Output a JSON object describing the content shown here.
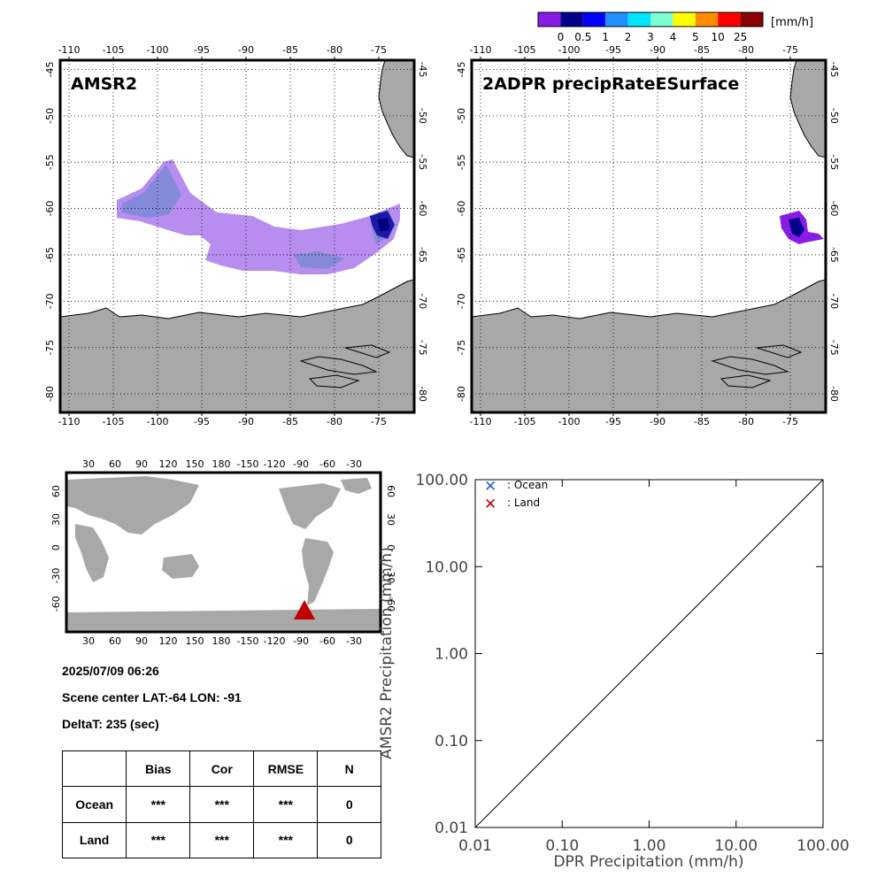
{
  "colorbar": {
    "unit": "[mm/h]",
    "labels": [
      "0",
      "0.5",
      "1",
      "2",
      "3",
      "4",
      "5",
      "10",
      "25"
    ],
    "colors": [
      "#8a1ae6",
      "#00008b",
      "#0000ff",
      "#1e90ff",
      "#00e5ff",
      "#7fffd4",
      "#ffff00",
      "#ff8c00",
      "#ff0000",
      "#8b0000"
    ]
  },
  "panels": {
    "amsr2": {
      "title": "AMSR2"
    },
    "dpr": {
      "title": "2ADPR precipRateESurface"
    }
  },
  "map_axes": {
    "lon_ticks": [
      "-110",
      "-105",
      "-100",
      "-95",
      "-90",
      "-85",
      "-80",
      "-75"
    ],
    "lat_ticks": [
      "-45",
      "-50",
      "-55",
      "-60",
      "-65",
      "-70",
      "-75",
      "-80"
    ],
    "lon_range": [
      -111,
      -71
    ],
    "lat_range": [
      -44,
      -82
    ]
  },
  "world_map": {
    "lon_ticks": [
      "30",
      "60",
      "90",
      "120",
      "150",
      "180",
      "-150",
      "-120",
      "-90",
      "-60",
      "-30"
    ],
    "lat_ticks": [
      "60",
      "30",
      "0",
      "-30",
      "-60"
    ],
    "marker": {
      "lon": -91,
      "lat": -64,
      "color": "#c00000"
    }
  },
  "info": {
    "datetime": "2025/07/09 06:26",
    "center": "Scene center LAT:-64   LON: -91",
    "deltat": "DeltaT:  235 (sec)"
  },
  "stats": {
    "headers": [
      "",
      "Bias",
      "Cor",
      "RMSE",
      "N"
    ],
    "rows": [
      [
        "Ocean",
        "***",
        "***",
        "***",
        "0"
      ],
      [
        "Land",
        "***",
        "***",
        "***",
        "0"
      ]
    ]
  },
  "chart_data": {
    "type": "scatter",
    "xlabel": "DPR Precipitation (mm/h)",
    "ylabel": "AMSR2 Precipitation (mm/h)",
    "x_scale": "log",
    "y_scale": "log",
    "xlim": [
      0.01,
      100
    ],
    "ylim": [
      0.01,
      100
    ],
    "x_ticks": [
      "0.01",
      "0.10",
      "1.00",
      "10.00",
      "100.00"
    ],
    "y_ticks": [
      "0.01",
      "0.10",
      "1.00",
      "10.00",
      "100.00"
    ],
    "series": [
      {
        "name": ": Ocean",
        "marker": "x",
        "color": "#1f5fd6",
        "points": []
      },
      {
        "name": ": Land",
        "marker": "x",
        "color": "#c00000",
        "points": []
      }
    ],
    "reference_line": "1:1",
    "legend_position": "top-left"
  }
}
